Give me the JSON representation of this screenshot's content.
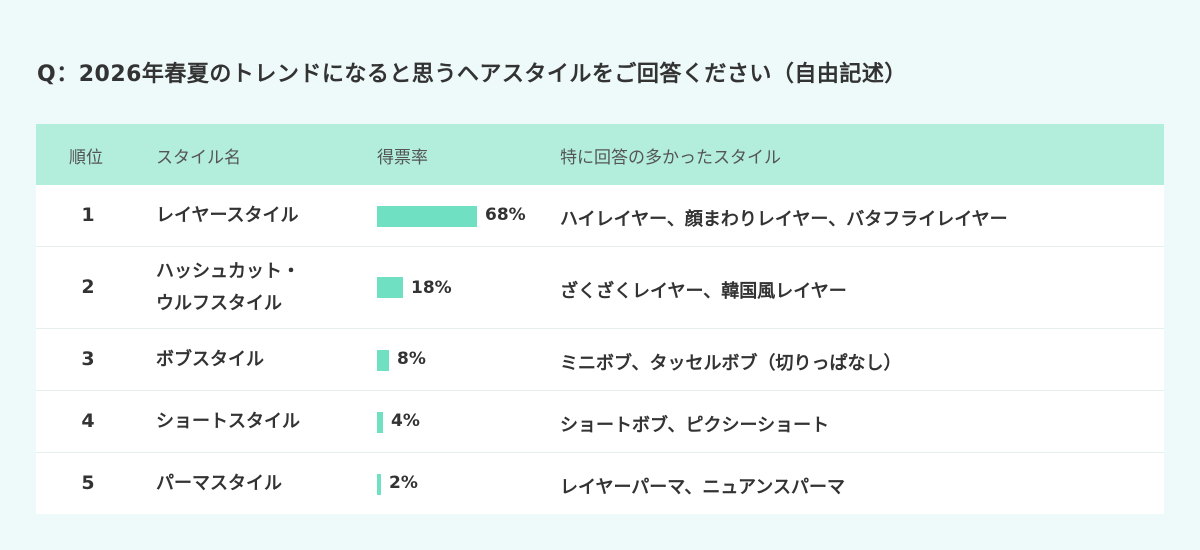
{
  "question": "Q：2026年春夏のトレンドになると思うヘアスタイルをご回答ください（自由記述）",
  "table": {
    "headers": {
      "rank": "順位",
      "style": "スタイル名",
      "rate": "得票率",
      "popular": "特に回答の多かったスタイル"
    },
    "rows": [
      {
        "rank": "1",
        "style_lines": [
          "レイヤースタイル"
        ],
        "rate_label": "68%",
        "popular": "ハイレイヤー、顔まわりレイヤー、バタフライレイヤー"
      },
      {
        "rank": "2",
        "style_lines": [
          "ハッシュカット・",
          "ウルフスタイル"
        ],
        "rate_label": "18%",
        "popular": "ざくざくレイヤー、韓国風レイヤー"
      },
      {
        "rank": "3",
        "style_lines": [
          "ボブスタイル"
        ],
        "rate_label": "8%",
        "popular": "ミニボブ、タッセルボブ（切りっぱなし）"
      },
      {
        "rank": "4",
        "style_lines": [
          "ショートスタイル"
        ],
        "rate_label": "4%",
        "popular": "ショートボブ、ピクシーショート"
      },
      {
        "rank": "5",
        "style_lines": [
          "パーマスタイル"
        ],
        "rate_label": "2%",
        "popular": "レイヤーパーマ、ニュアンスパーマ"
      }
    ]
  },
  "chart_data": {
    "type": "bar",
    "categories": [
      "レイヤースタイル",
      "ハッシュカット・ウルフスタイル",
      "ボブスタイル",
      "ショートスタイル",
      "パーマスタイル"
    ],
    "values": [
      68,
      18,
      8,
      4,
      2
    ],
    "unit": "%",
    "bar_color": "#6fe0c1"
  },
  "colors": {
    "header_bg": "#b3eedd",
    "page_bg": "#eef9f9",
    "bar": "#6fe0c1"
  }
}
